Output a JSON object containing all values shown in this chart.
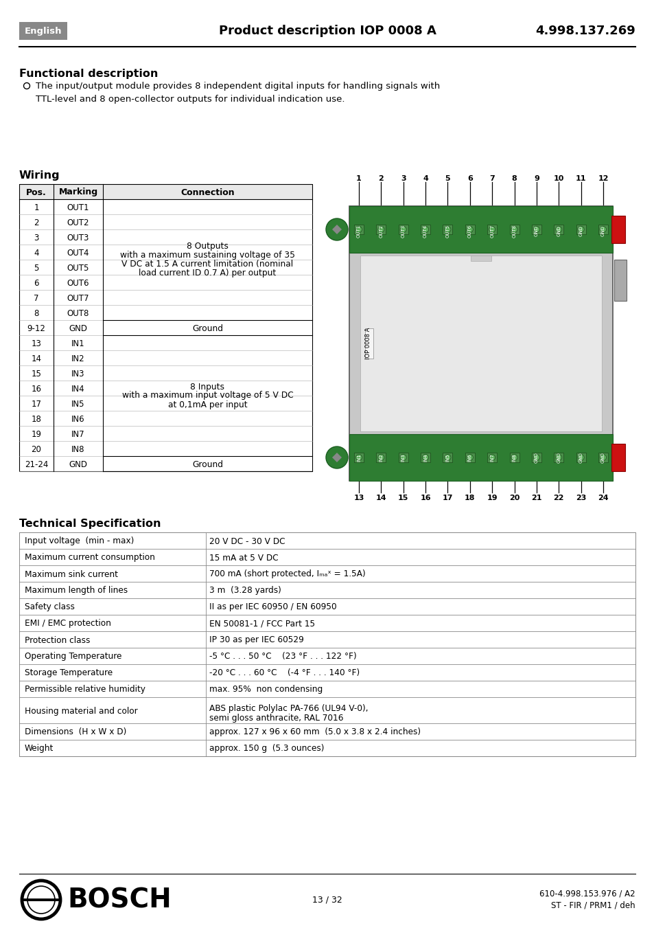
{
  "page_bg": "#ffffff",
  "header_bg": "#888888",
  "header_text_color": "#ffffff",
  "header_label": "English",
  "header_title": "Product description IOP 0008 A",
  "header_number": "4.998.137.269",
  "section1_title": "Functional description",
  "section1_bullet": "The input/output module provides 8 independent digital inputs for handling signals with\nTTL-level and 8 open-collector outputs for individual indication use.",
  "section2_title": "Wiring",
  "table_headers": [
    "Pos.",
    "Marking",
    "Connection"
  ],
  "table_rows": [
    [
      "1",
      "OUT1"
    ],
    [
      "2",
      "OUT2"
    ],
    [
      "3",
      "OUT3"
    ],
    [
      "4",
      "OUT4"
    ],
    [
      "5",
      "OUT5"
    ],
    [
      "6",
      "OUT6"
    ],
    [
      "7",
      "OUT7"
    ],
    [
      "8",
      "OUT8"
    ],
    [
      "9-12",
      "GND"
    ],
    [
      "13",
      "IN1"
    ],
    [
      "14",
      "IN2"
    ],
    [
      "15",
      "IN3"
    ],
    [
      "16",
      "IN4"
    ],
    [
      "17",
      "IN5"
    ],
    [
      "18",
      "IN6"
    ],
    [
      "19",
      "IN7"
    ],
    [
      "20",
      "IN8"
    ],
    [
      "21-24",
      "GND"
    ]
  ],
  "conn_outputs_lines": [
    "8 Outputs",
    "with a maximum sustaining voltage of 35",
    "V DC at 1.5 A current limitation (nominal",
    "load current ID 0.7 A) per output"
  ],
  "conn_ground": "Ground",
  "conn_inputs_lines": [
    "8 Inputs",
    "with a maximum input voltage of 5 V DC",
    "at 0,1mA per input"
  ],
  "device_top_labels": [
    "OUT1",
    "OUT2",
    "OUT3",
    "OUT4",
    "OUT5",
    "OUT6",
    "OUT7",
    "OUT8",
    "GND",
    "GND",
    "GND",
    "GND"
  ],
  "device_bot_labels": [
    "IN1",
    "IN2",
    "IN3",
    "IN4",
    "IN5",
    "IN6",
    "IN7",
    "IN8",
    "GND",
    "GND",
    "GND",
    "GND"
  ],
  "device_label": "IOP 0008 A",
  "section3_title": "Technical Specification",
  "spec_rows": [
    [
      "Input voltage  (min - max)",
      "20 V DC - 30 V DC",
      1
    ],
    [
      "Maximum current consumption",
      "15 mA at 5 V DC",
      1
    ],
    [
      "Maximum sink current",
      "700 mA (short protected, Iₘₐˣ = 1.5A)",
      1
    ],
    [
      "Maximum length of lines",
      "3 m  (3.28 yards)",
      1
    ],
    [
      "Safety class",
      "II as per IEC 60950 / EN 60950",
      1
    ],
    [
      "EMI / EMC protection",
      "EN 50081-1 / FCC Part 15",
      1
    ],
    [
      "Protection class",
      "IP 30 as per IEC 60529",
      1
    ],
    [
      "Operating Temperature",
      "-5 °C . . . 50 °C    (23 °F . . . 122 °F)",
      1
    ],
    [
      "Storage Temperature",
      "-20 °C . . . 60 °C    (-4 °F . . . 140 °F)",
      1
    ],
    [
      "Permissible relative humidity",
      "max. 95%  non condensing",
      1
    ],
    [
      "Housing material and color",
      "ABS plastic Polylac PA-766 (UL94 V-0),\nsemi gloss anthracite, RAL 7016",
      2
    ],
    [
      "Dimensions  (H x W x D)",
      "approx. 127 x 96 x 60 mm  (5.0 x 3.8 x 2.4 inches)",
      1
    ],
    [
      "Weight",
      "approx. 150 g  (5.3 ounces)",
      1
    ]
  ],
  "footer_page": "13 / 32",
  "footer_code": "610-4.998.153.976 / A2",
  "footer_sub": "ST - FIR / PRM1 / deh"
}
